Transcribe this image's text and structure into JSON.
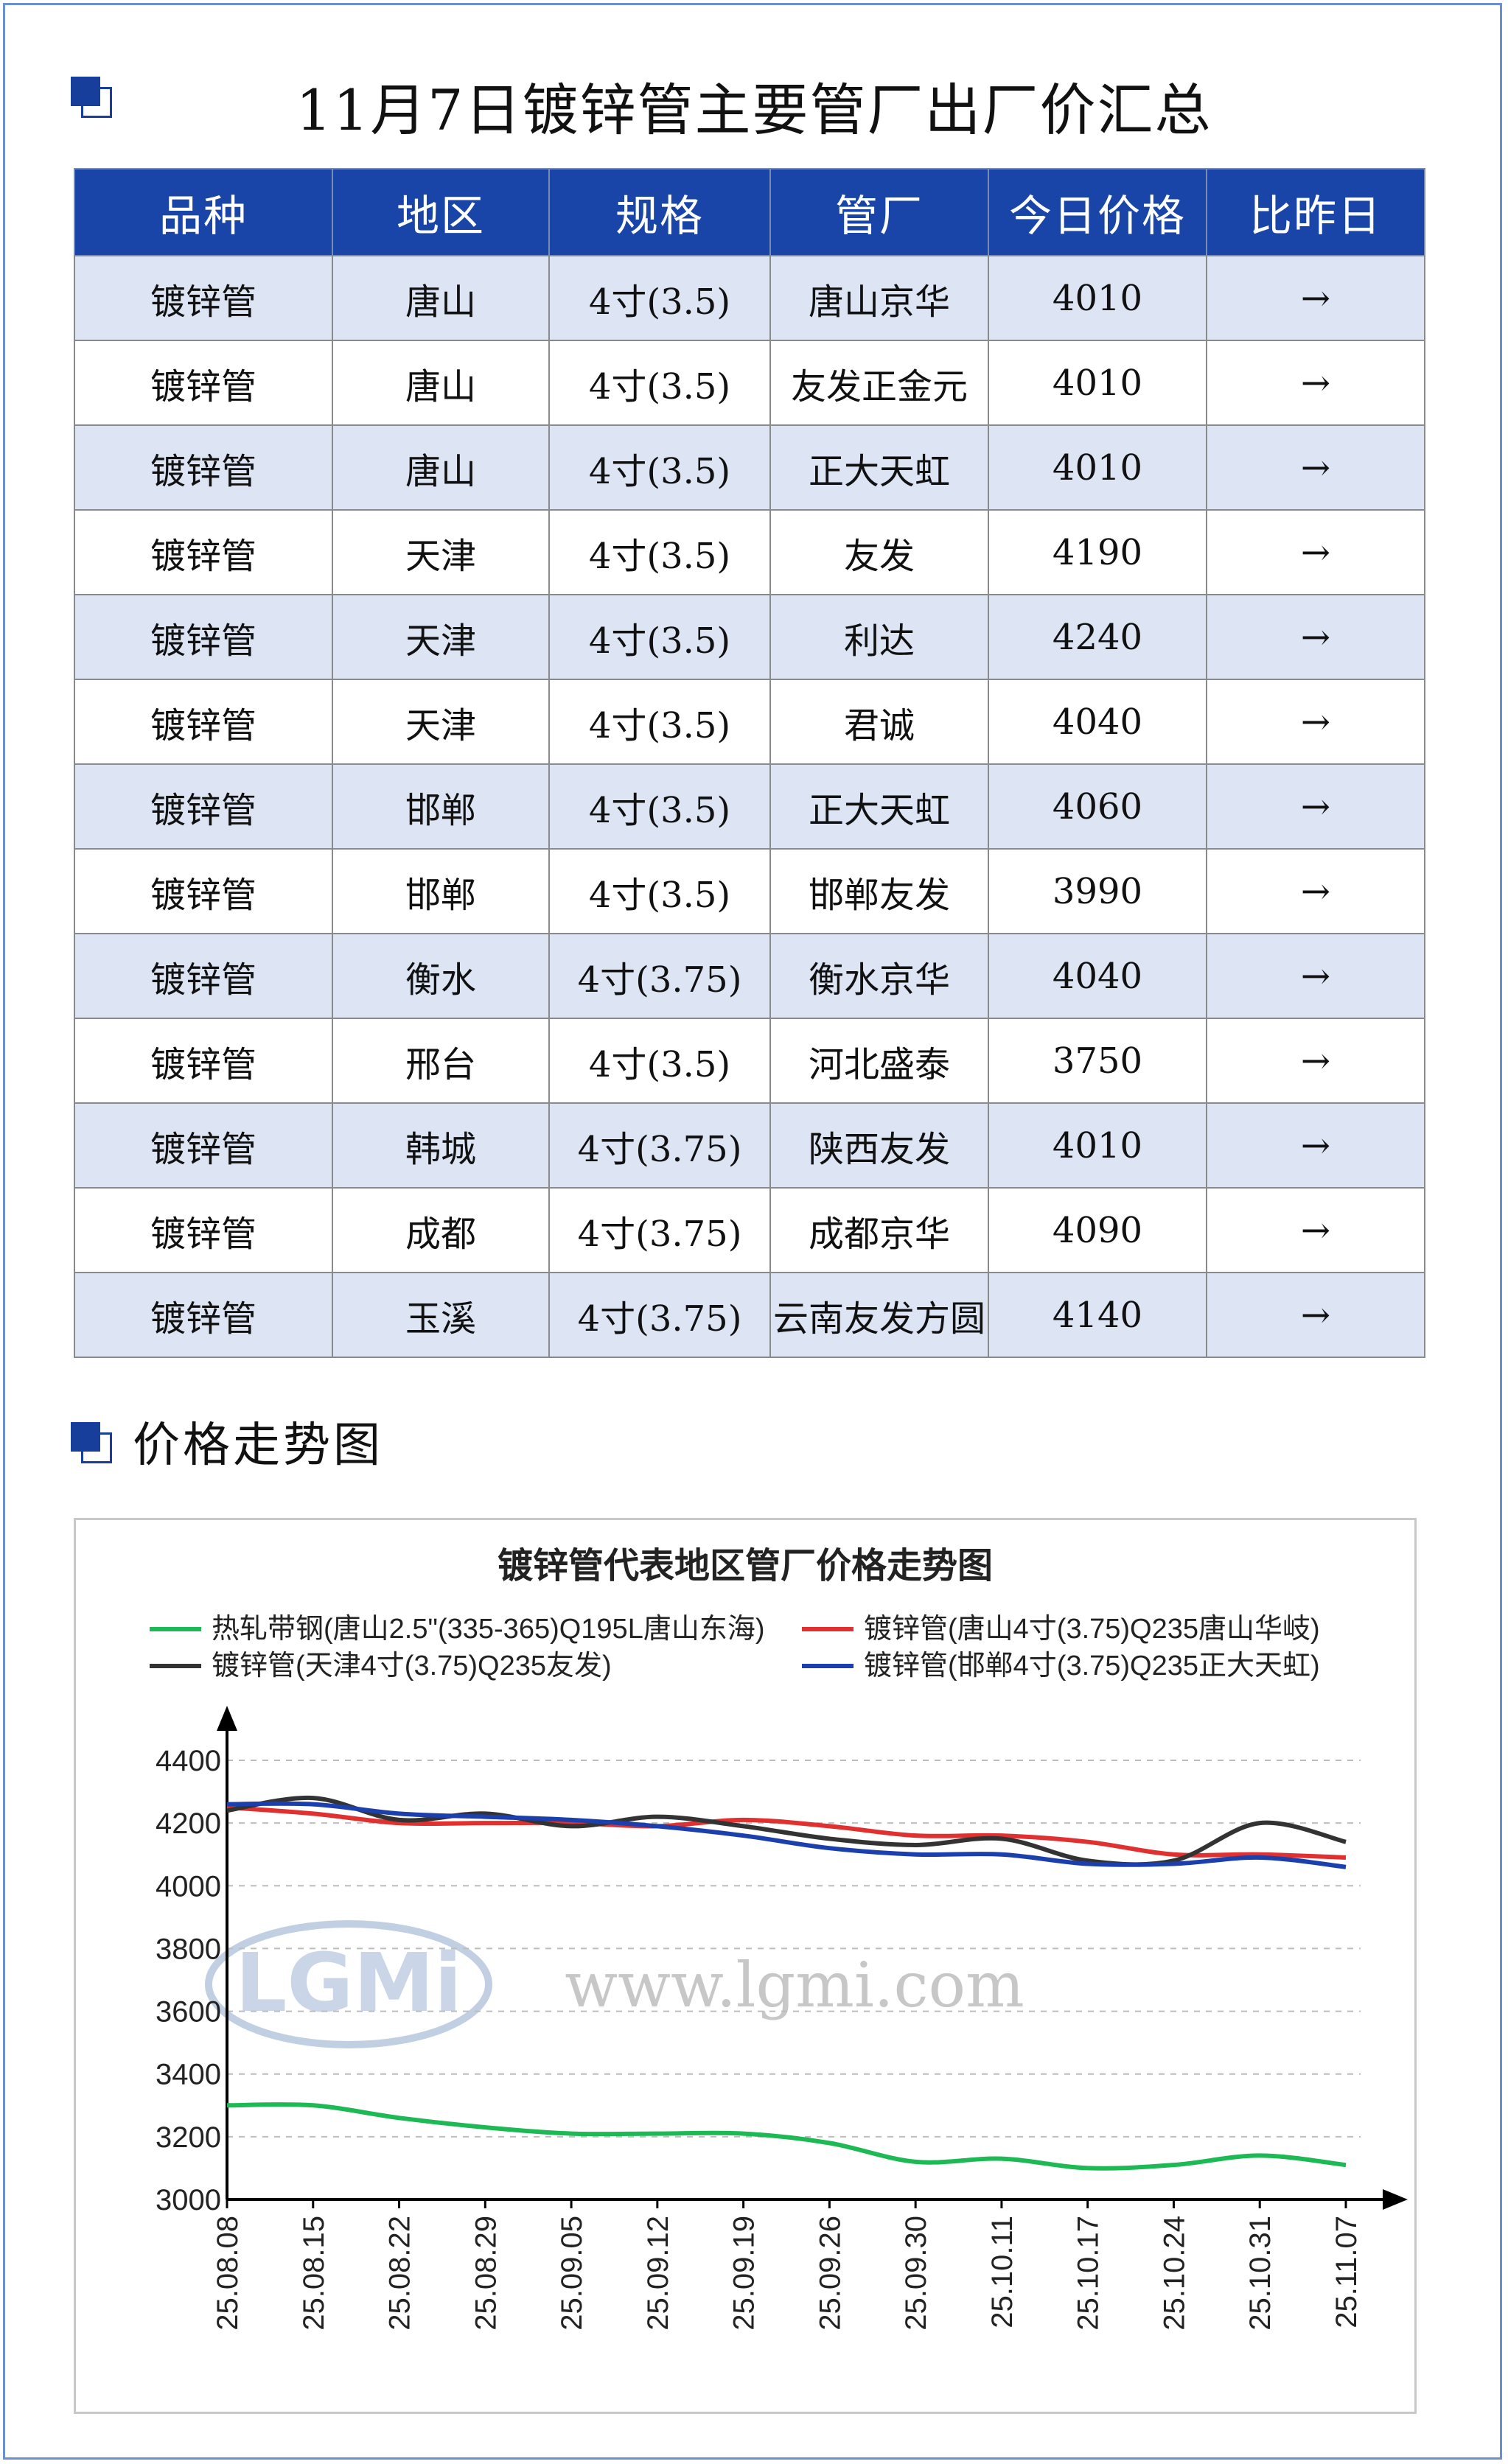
{
  "header": {
    "title": "11月7日镀锌管主要管厂出厂价汇总"
  },
  "table": {
    "columns": [
      "品种",
      "地区",
      "规格",
      "管厂",
      "今日价格",
      "比昨日"
    ],
    "rows": [
      [
        "镀锌管",
        "唐山",
        "4寸(3.5)",
        "唐山京华",
        "4010",
        "→"
      ],
      [
        "镀锌管",
        "唐山",
        "4寸(3.5)",
        "友发正金元",
        "4010",
        "→"
      ],
      [
        "镀锌管",
        "唐山",
        "4寸(3.5)",
        "正大天虹",
        "4010",
        "→"
      ],
      [
        "镀锌管",
        "天津",
        "4寸(3.5)",
        "友发",
        "4190",
        "→"
      ],
      [
        "镀锌管",
        "天津",
        "4寸(3.5)",
        "利达",
        "4240",
        "→"
      ],
      [
        "镀锌管",
        "天津",
        "4寸(3.5)",
        "君诚",
        "4040",
        "→"
      ],
      [
        "镀锌管",
        "邯郸",
        "4寸(3.5)",
        "正大天虹",
        "4060",
        "→"
      ],
      [
        "镀锌管",
        "邯郸",
        "4寸(3.5)",
        "邯郸友发",
        "3990",
        "→"
      ],
      [
        "镀锌管",
        "衡水",
        "4寸(3.75)",
        "衡水京华",
        "4040",
        "→"
      ],
      [
        "镀锌管",
        "邢台",
        "4寸(3.5)",
        "河北盛泰",
        "3750",
        "→"
      ],
      [
        "镀锌管",
        "韩城",
        "4寸(3.75)",
        "陕西友发",
        "4010",
        "→"
      ],
      [
        "镀锌管",
        "成都",
        "4寸(3.75)",
        "成都京华",
        "4090",
        "→"
      ],
      [
        "镀锌管",
        "玉溪",
        "4寸(3.75)",
        "云南友发方圆",
        "4140",
        "→"
      ]
    ]
  },
  "section": {
    "trend_title": "价格走势图"
  },
  "watermark": {
    "logo_text": "LGMi",
    "url_text": "www.lgmi.com"
  },
  "colors": {
    "header_bg": "#1a45a8",
    "row_alt": "#dde4f3",
    "accent": "#173e9a"
  },
  "chart_data": {
    "type": "line",
    "title": "镀锌管代表地区管厂价格走势图",
    "xlabel": "",
    "ylabel": "",
    "x": [
      "25.08.08",
      "25.08.15",
      "25.08.22",
      "25.08.29",
      "25.09.05",
      "25.09.12",
      "25.09.19",
      "25.09.26",
      "25.09.30",
      "25.10.11",
      "25.10.17",
      "25.10.24",
      "25.10.31",
      "25.11.07"
    ],
    "ylim": [
      3000,
      4400
    ],
    "yticks": [
      3000,
      3200,
      3400,
      3600,
      3800,
      4000,
      4200,
      4400
    ],
    "grid": true,
    "legend": "top",
    "series": [
      {
        "name": "热轧带钢(唐山2.5\"(335-365)Q195L唐山东海)",
        "color": "#1db954",
        "values": [
          3300,
          3300,
          3260,
          3230,
          3210,
          3210,
          3210,
          3180,
          3120,
          3130,
          3100,
          3110,
          3140,
          3110
        ]
      },
      {
        "name": "镀锌管(唐山4寸(3.75)Q235唐山华岐)",
        "color": "#e03030",
        "values": [
          4250,
          4230,
          4200,
          4200,
          4200,
          4190,
          4210,
          4190,
          4160,
          4160,
          4140,
          4100,
          4100,
          4090
        ]
      },
      {
        "name": "镀锌管(天津4寸(3.75)Q235友发)",
        "color": "#333333",
        "values": [
          4240,
          4280,
          4210,
          4230,
          4190,
          4220,
          4190,
          4150,
          4130,
          4150,
          4080,
          4080,
          4200,
          4140
        ]
      },
      {
        "name": "镀锌管(邯郸4寸(3.75)Q235正大天虹)",
        "color": "#1c3fae",
        "values": [
          4260,
          4260,
          4230,
          4220,
          4210,
          4190,
          4160,
          4120,
          4100,
          4100,
          4070,
          4070,
          4090,
          4060
        ]
      }
    ]
  }
}
